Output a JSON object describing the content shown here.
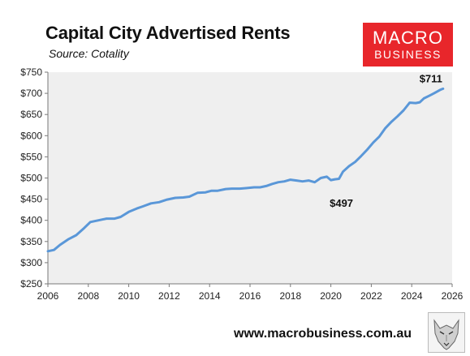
{
  "header": {
    "title": "Capital City Advertised Rents",
    "subtitle": "Source: Cotality"
  },
  "logo": {
    "line1": "MACRO",
    "line2": "BUSINESS",
    "color": "#e8262b"
  },
  "footer": {
    "url": "www.macrobusiness.com.au"
  },
  "chart_data": {
    "type": "line",
    "title": "Capital City Advertised Rents",
    "subtitle": "Source: Cotality",
    "xlabel": "",
    "ylabel": "",
    "xlim": [
      2006,
      2026
    ],
    "ylim": [
      250,
      750
    ],
    "grid": false,
    "plot_background": "#efefef",
    "line_color": "#5a97d8",
    "x_ticks": [
      2006,
      2008,
      2010,
      2012,
      2014,
      2016,
      2018,
      2020,
      2022,
      2024,
      2026
    ],
    "y_ticks": [
      "$250",
      "$300",
      "$350",
      "$400",
      "$450",
      "$500",
      "$550",
      "$600",
      "$650",
      "$700",
      "$750"
    ],
    "y_tick_values": [
      250,
      300,
      350,
      400,
      450,
      500,
      550,
      600,
      650,
      700,
      750
    ],
    "series": [
      {
        "name": "",
        "x": [
          2006.0,
          2006.3,
          2006.6,
          2007.0,
          2007.4,
          2007.8,
          2008.1,
          2008.5,
          2008.9,
          2009.3,
          2009.6,
          2010.0,
          2010.4,
          2010.7,
          2011.1,
          2011.5,
          2011.9,
          2012.3,
          2012.7,
          2013.0,
          2013.4,
          2013.8,
          2014.1,
          2014.4,
          2014.8,
          2015.1,
          2015.5,
          2015.8,
          2016.2,
          2016.5,
          2016.8,
          2017.1,
          2017.4,
          2017.7,
          2018.0,
          2018.3,
          2018.6,
          2018.9,
          2019.2,
          2019.5,
          2019.8,
          2020.0,
          2020.2,
          2020.4,
          2020.6,
          2020.9,
          2021.2,
          2021.5,
          2021.8,
          2022.1,
          2022.4,
          2022.7,
          2023.0,
          2023.3,
          2023.6,
          2023.9,
          2024.2,
          2024.4,
          2024.6,
          2024.9,
          2025.1,
          2025.4,
          2025.55
        ],
        "values": [
          327,
          330,
          342,
          355,
          365,
          382,
          396,
          400,
          404,
          404,
          408,
          420,
          428,
          433,
          440,
          443,
          449,
          453,
          454,
          456,
          465,
          466,
          470,
          470,
          474,
          475,
          475,
          476,
          478,
          478,
          481,
          486,
          490,
          492,
          496,
          494,
          492,
          494,
          490,
          500,
          503,
          495,
          497,
          498,
          515,
          528,
          538,
          552,
          567,
          584,
          598,
          618,
          633,
          646,
          660,
          678,
          677,
          679,
          688,
          695,
          700,
          708,
          711
        ]
      }
    ],
    "annotations": [
      {
        "text": "$497",
        "x": 2020.2,
        "y": 497
      },
      {
        "text": "$711",
        "x": 2025.55,
        "y": 711
      }
    ]
  }
}
